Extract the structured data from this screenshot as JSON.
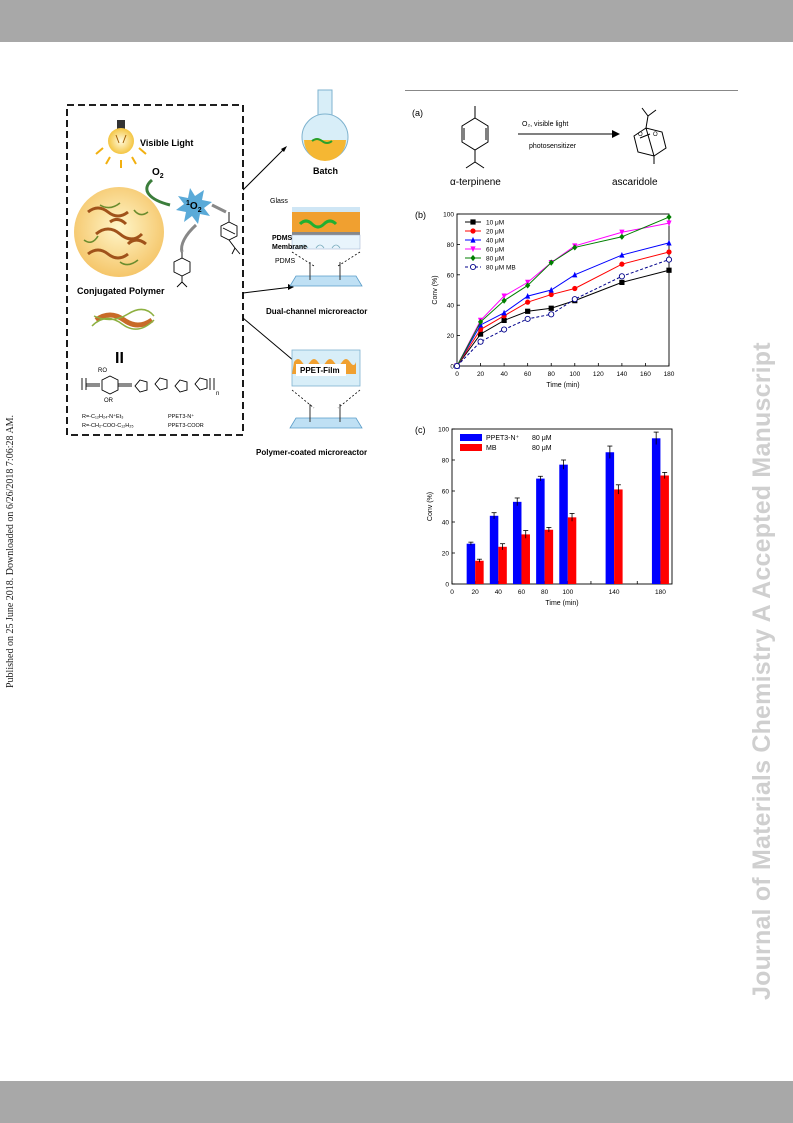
{
  "page": {
    "published_note": "Published on 25 June 2018. Downloaded on 6/26/2018 7:06:28 AM.",
    "watermark": "Journal of Materials Chemistry A Accepted Manuscript"
  },
  "left_figure": {
    "visible_light": "Visible Light",
    "o2": "O",
    "o2_sub": "2",
    "singlet_sup": "1",
    "singlet": "O",
    "singlet_sub": "2",
    "conjugated_polymer": "Conjugated Polymer",
    "batch": "Batch",
    "glass": "Glass",
    "pdms_membrane_1": "PDMS",
    "pdms_membrane_2": "Membrane",
    "pdms": "PDMS",
    "dual_channel": "Dual-channel microreactor",
    "ppet_film": "PPET-Film",
    "polymer_coated": "Polymer-coated microreactor",
    "equiv_symbol": "II",
    "ro": "RO",
    "or": "OR",
    "n_label": "n",
    "r1": "R=-C₁₂H₂₄-N⁺Et₃",
    "r2": "R=-CH₂-COO-C₁₂H₂₅",
    "p1": "PPET3-N⁺",
    "p2": "PPET3-COOR"
  },
  "panel_a": {
    "label": "(a)",
    "cond_top": "O₂, visible light",
    "cond_bottom": "photosensitizer",
    "reactant": "α-terpinene",
    "product": "ascaridole"
  },
  "colors": {
    "black": "#000000",
    "red": "#ff0000",
    "blue": "#0000ff",
    "magenta": "#ff00ff",
    "green": "#007f00",
    "mb": "#00008b",
    "bar_blue": "#0000ff",
    "bar_red": "#ff0000"
  },
  "chart_data": [
    {
      "id": "b",
      "panel_label": "(b)",
      "type": "line",
      "xlabel": "Time (min)",
      "ylabel": "Conv (%)",
      "xlim": [
        0,
        180
      ],
      "ylim": [
        0,
        100
      ],
      "xticks": [
        0,
        20,
        40,
        60,
        80,
        100,
        120,
        140,
        160,
        180
      ],
      "yticks": [
        0,
        20,
        40,
        60,
        80,
        100
      ],
      "grid": false,
      "legend": "top-left",
      "x": [
        0,
        20,
        40,
        60,
        80,
        100,
        140,
        180
      ],
      "series": [
        {
          "name": "10 μM",
          "color": "#000000",
          "marker": "square",
          "dash": false,
          "values": [
            0,
            21,
            30,
            36,
            38,
            43,
            55,
            63
          ]
        },
        {
          "name": "20 μM",
          "color": "#ff0000",
          "marker": "circle",
          "dash": false,
          "values": [
            0,
            24,
            33,
            42,
            47,
            51,
            67,
            75
          ]
        },
        {
          "name": "40 μM",
          "color": "#0000ff",
          "marker": "triangle",
          "dash": false,
          "values": [
            0,
            27,
            35,
            46,
            50,
            60,
            73,
            81
          ]
        },
        {
          "name": "60 μM",
          "color": "#ff00ff",
          "marker": "triangle-down",
          "dash": false,
          "values": [
            0,
            30,
            46,
            55,
            68,
            79,
            88,
            94
          ]
        },
        {
          "name": "80 μM",
          "color": "#007f00",
          "marker": "diamond",
          "dash": false,
          "values": [
            0,
            29,
            43,
            53,
            68,
            78,
            85,
            98
          ]
        },
        {
          "name": "80 μM MB",
          "color": "#00008b",
          "marker": "open-circle",
          "dash": true,
          "values": [
            0,
            16,
            24,
            31,
            34,
            44,
            59,
            70
          ]
        }
      ]
    },
    {
      "id": "c",
      "panel_label": "(c)",
      "type": "bar",
      "xlabel": "Time (min)",
      "ylabel": "Conv (%)",
      "xlim": [
        0,
        190
      ],
      "ylim": [
        0,
        100
      ],
      "xticks": [
        0,
        20,
        40,
        60,
        80,
        100,
        120,
        140,
        160,
        180
      ],
      "tick_labels": [
        "0",
        "20",
        "40",
        "60",
        "80",
        "100",
        "140",
        "180"
      ],
      "tick_values": [
        0,
        20,
        40,
        60,
        80,
        100,
        140,
        180
      ],
      "yticks": [
        0,
        20,
        40,
        60,
        80,
        100
      ],
      "legend": "top-left",
      "categories": [
        "20",
        "40",
        "60",
        "80",
        "100",
        "140",
        "180"
      ],
      "series": [
        {
          "name": "PPET3-N⁺",
          "legend_value": "80 μM",
          "color": "#0000ff",
          "values": [
            26,
            44,
            53,
            68,
            77,
            85,
            94
          ],
          "errors": [
            1,
            2,
            2.5,
            1.5,
            3,
            4,
            4
          ]
        },
        {
          "name": "MB",
          "legend_value": "80 μM",
          "color": "#ff0000",
          "values": [
            15,
            24,
            32,
            35,
            43,
            61,
            70
          ],
          "errors": [
            1,
            2,
            2.5,
            1.5,
            2.5,
            3,
            2
          ]
        }
      ]
    }
  ]
}
